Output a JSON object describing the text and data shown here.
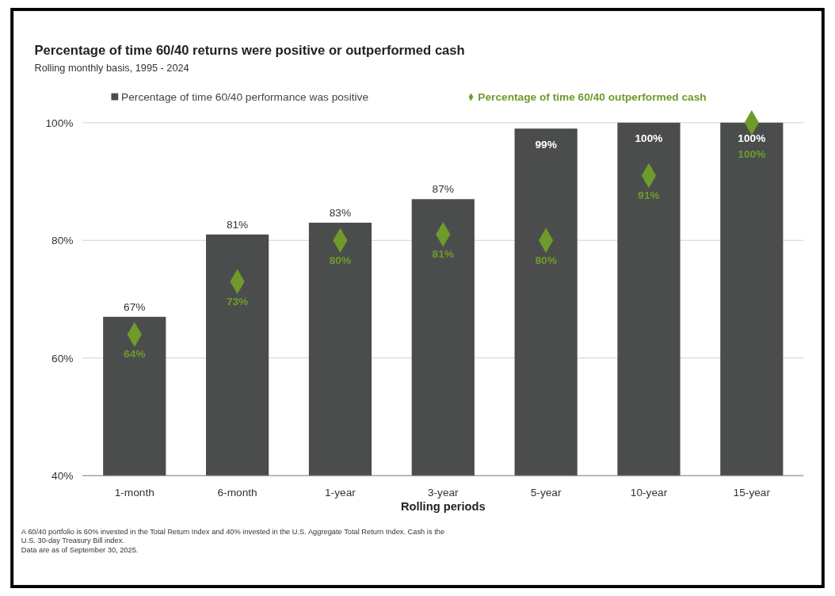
{
  "chart_data": {
    "type": "bar",
    "title": "Percentage of time 60/40 returns were positive or outperformed cash",
    "subtitle": "Rolling monthly basis, 1995 - 2024",
    "xlabel": "Rolling periods",
    "categories": [
      "1-month",
      "6-month",
      "1-year",
      "3-year",
      "5-year",
      "10-year",
      "15-year"
    ],
    "series": [
      {
        "name": "Percentage of time 60/40 performance was positive",
        "color": "#4b4d4d",
        "values": [
          67,
          81,
          83,
          87,
          99,
          100,
          100
        ],
        "value_labels": [
          "67%",
          "81%",
          "83%",
          "87%",
          "99%",
          "100%",
          "100%"
        ]
      },
      {
        "name": "Percentage of time 60/40 outperformed cash",
        "type": "scatter",
        "color": "#6e9b2a",
        "values": [
          64,
          73,
          80,
          81,
          80,
          91,
          100
        ],
        "value_labels": [
          "64%",
          "73%",
          "80%",
          "81%",
          "80%",
          "91%",
          "100%"
        ]
      }
    ],
    "ylim": [
      40,
      100
    ],
    "yticks": [
      {
        "value": 40,
        "label": "40%"
      },
      {
        "value": 60,
        "label": "60%"
      },
      {
        "value": 80,
        "label": "80%"
      },
      {
        "value": 100,
        "label": "100%"
      }
    ],
    "grid": "y",
    "legend": "top",
    "marker": "diamond",
    "annotations": [
      "A 60/40 portfolio is 60% invested in the Total Return Index and 40% invested in the U.S. Aggregate Total Return Index. Cash is the",
      "U.S. 30-day Treasury Bill index.",
      "Data are as of September 30, 2025."
    ]
  }
}
